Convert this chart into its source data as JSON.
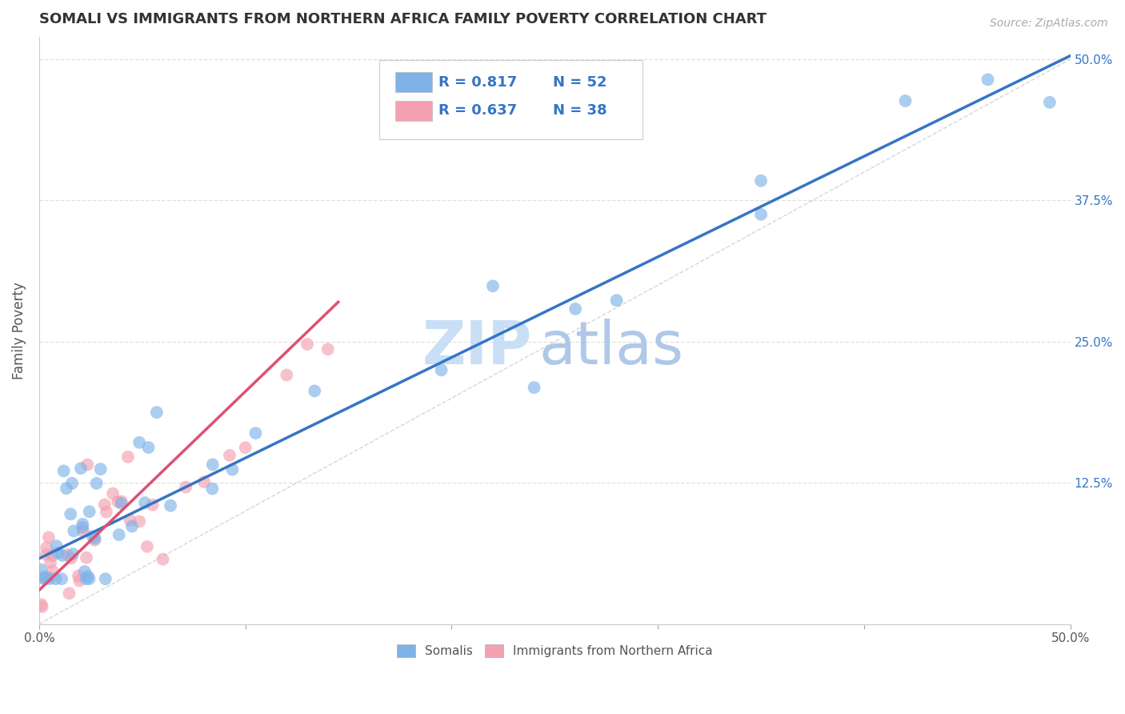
{
  "title": "SOMALI VS IMMIGRANTS FROM NORTHERN AFRICA FAMILY POVERTY CORRELATION CHART",
  "source": "Source: ZipAtlas.com",
  "ylabel": "Family Poverty",
  "xlim": [
    0.0,
    0.5
  ],
  "ylim": [
    0.0,
    0.52
  ],
  "xticks": [
    0.0,
    0.1,
    0.2,
    0.3,
    0.4,
    0.5
  ],
  "yticks": [
    0.0,
    0.125,
    0.25,
    0.375,
    0.5
  ],
  "somali_color": "#7FB3E8",
  "northern_africa_color": "#F4A0B0",
  "somali_line_color": "#3575C5",
  "northern_africa_line_color": "#E05070",
  "diagonal_color": "#cccccc",
  "background_color": "#ffffff",
  "grid_color": "#dddddd",
  "watermark_zip_color": "#c8dff5",
  "watermark_atlas_color": "#b0c8e8",
  "legend_R1": "R = 0.817",
  "legend_N1": "N = 52",
  "legend_R2": "R = 0.637",
  "legend_N2": "N = 38",
  "label_color": "#3575C5",
  "tick_color": "#3575C5",
  "somali_line": {
    "x0": 0.0,
    "x1": 0.5,
    "y0": 0.058,
    "y1": 0.503
  },
  "northern_africa_line": {
    "x0": 0.0,
    "x1": 0.145,
    "y0": 0.03,
    "y1": 0.285
  },
  "diagonal_line": {
    "x0": 0.0,
    "x1": 0.5,
    "y0": 0.0,
    "y1": 0.5
  }
}
